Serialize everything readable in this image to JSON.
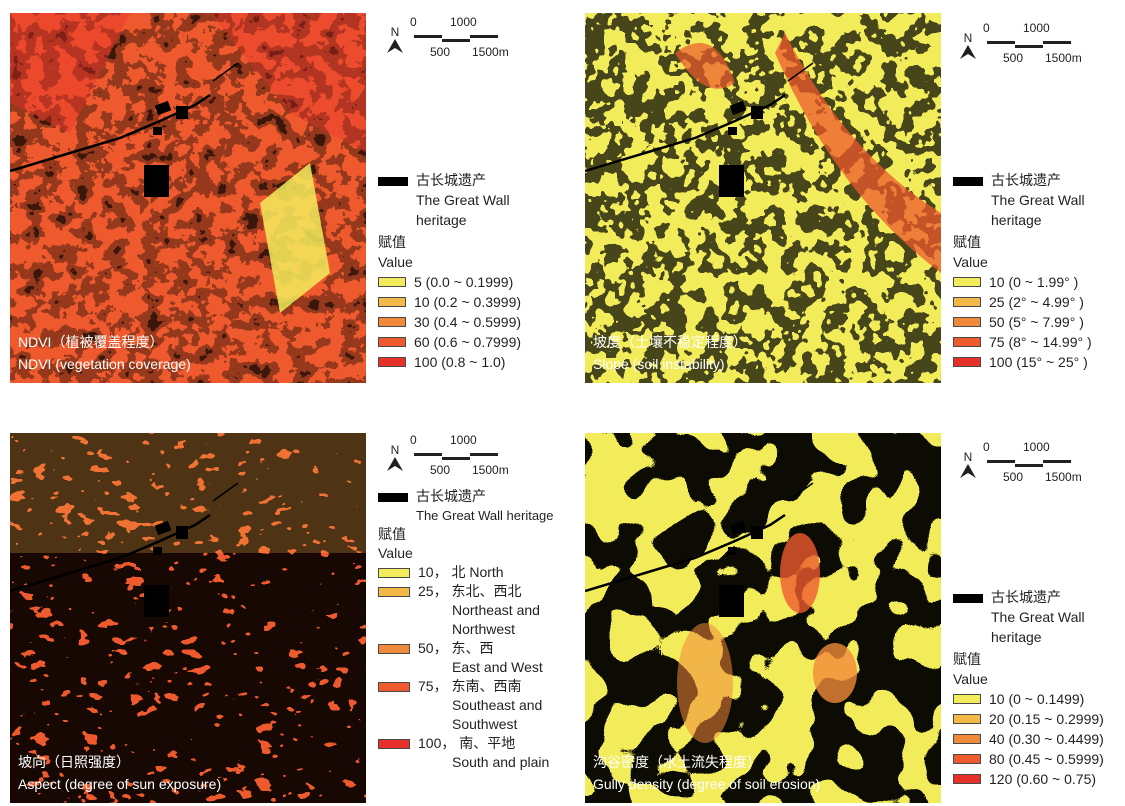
{
  "colors": {
    "yellow": "#f2ec5a",
    "light_orange": "#f2b946",
    "orange": "#f0893a",
    "red_orange": "#ee5a2e",
    "red": "#e8302a",
    "heritage": "#000000"
  },
  "scale_bar": {
    "north": "N",
    "top_labels": [
      "0",
      "1000"
    ],
    "bottom_labels": [
      "500",
      "1500m"
    ]
  },
  "heritage_legend": {
    "zh": "古长城遗产",
    "en": "The Great Wall heritage",
    "en_line1": "The Great Wall",
    "en_line2": "heritage"
  },
  "value_title": {
    "zh": "赋值",
    "en": "Value"
  },
  "maps": [
    {
      "id": "ndvi",
      "caption_zh": "NDVI（植被覆盖程度）",
      "caption_en": "NDVI (vegetation coverage)",
      "legend": [
        "5 (0.0 ~ 0.1999)",
        "10 (0.2 ~ 0.3999)",
        "30 (0.4 ~ 0.5999)",
        "60 (0.6 ~ 0.7999)",
        "100 (0.8 ~ 1.0)"
      ]
    },
    {
      "id": "slope",
      "caption_zh": "坡度（土壤不稳定程度）",
      "caption_en": "Slope (soil instability)",
      "legend": [
        "10 (0 ~ 1.99° )",
        "25 (2° ~ 4.99° )",
        "50 (5° ~ 7.99° )",
        "75 (8° ~ 14.99° )",
        "100 (15° ~ 25° )"
      ]
    },
    {
      "id": "aspect",
      "caption_zh": "坡向（日照强度）",
      "caption_en": "Aspect (degree of sun exposure)",
      "legend": [
        {
          "value": "10，",
          "zh": "北 North",
          "en": []
        },
        {
          "value": "25，",
          "zh": "东北、西北",
          "en": [
            "Northeast and",
            "Northwest"
          ]
        },
        {
          "value": "50，",
          "zh": "东、西",
          "en": [
            "East and West"
          ]
        },
        {
          "value": "75，",
          "zh": "东南、西南",
          "en": [
            "Southeast and",
            "Southwest"
          ]
        },
        {
          "value": "100，",
          "zh": "南、平地",
          "en": [
            "South and plain"
          ]
        }
      ]
    },
    {
      "id": "gully",
      "caption_zh": "沟谷密度（水土流失程度）",
      "caption_en": "Gully density (degree of soil erosion)",
      "legend": [
        "10 (0 ~ 0.1499)",
        "20 (0.15 ~ 0.2999)",
        "40 (0.30 ~ 0.4499)",
        "80 (0.45 ~ 0.5999)",
        "120 (0.60 ~ 0.75)"
      ]
    }
  ]
}
